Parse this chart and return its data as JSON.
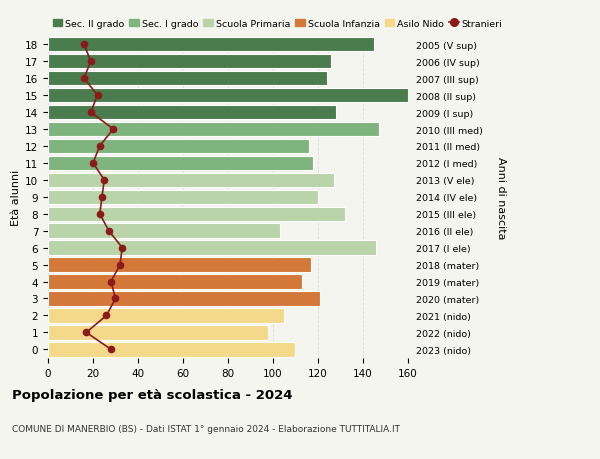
{
  "ages": [
    18,
    17,
    16,
    15,
    14,
    13,
    12,
    11,
    10,
    9,
    8,
    7,
    6,
    5,
    4,
    3,
    2,
    1,
    0
  ],
  "right_labels": [
    "2005 (V sup)",
    "2006 (IV sup)",
    "2007 (III sup)",
    "2008 (II sup)",
    "2009 (I sup)",
    "2010 (III med)",
    "2011 (II med)",
    "2012 (I med)",
    "2013 (V ele)",
    "2014 (IV ele)",
    "2015 (III ele)",
    "2016 (II ele)",
    "2017 (I ele)",
    "2018 (mater)",
    "2019 (mater)",
    "2020 (mater)",
    "2021 (nido)",
    "2022 (nido)",
    "2023 (nido)"
  ],
  "bar_values": [
    145,
    126,
    124,
    160,
    128,
    147,
    116,
    118,
    127,
    120,
    132,
    103,
    146,
    117,
    113,
    121,
    105,
    98,
    110
  ],
  "stranieri_values": [
    16,
    19,
    16,
    22,
    19,
    29,
    23,
    20,
    25,
    24,
    23,
    27,
    33,
    32,
    28,
    30,
    26,
    17,
    28
  ],
  "bar_colors": {
    "sec2": "#4a7c4e",
    "sec1": "#7fb47f",
    "primaria": "#b8d4a8",
    "infanzia": "#d4783a",
    "nido": "#f5d98b"
  },
  "age_school": {
    "sec2": [
      14,
      15,
      16,
      17,
      18
    ],
    "sec1": [
      11,
      12,
      13
    ],
    "primaria": [
      6,
      7,
      8,
      9,
      10
    ],
    "infanzia": [
      3,
      4,
      5
    ],
    "nido": [
      0,
      1,
      2
    ]
  },
  "stranieri_color": "#8b1a1a",
  "legend_labels": [
    "Sec. II grado",
    "Sec. I grado",
    "Scuola Primaria",
    "Scuola Infanzia",
    "Asilo Nido",
    "Stranieri"
  ],
  "ylabel_text": "Età alunni",
  "right_ylabel_text": "Anni di nascita",
  "title": "Popolazione per età scolastica - 2024",
  "subtitle": "COMUNE DI MANERBIO (BS) - Dati ISTAT 1° gennaio 2024 - Elaborazione TUTTITALIA.IT",
  "xlim": [
    0,
    160
  ],
  "xticks": [
    0,
    20,
    40,
    60,
    80,
    100,
    120,
    140,
    160
  ],
  "bg_color": "#f5f5f0",
  "grid_color": "#dddddd"
}
